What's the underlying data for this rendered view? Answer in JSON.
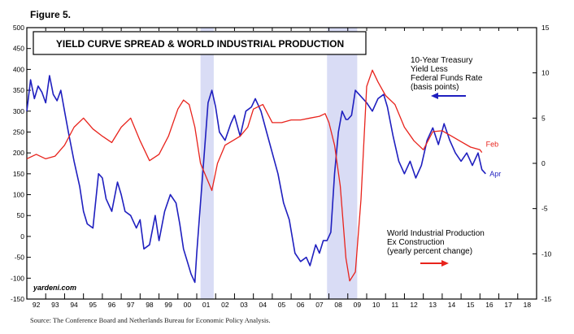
{
  "figure_label": "Figure 5.",
  "source_note": "Source: The Conference Board and Netherlands Bureau for Economic Policy Analysis.",
  "chart_data": {
    "type": "line",
    "title": "YIELD CURVE SPREAD & WORLD INDUSTRIAL PRODUCTION",
    "watermark": "yardeni.com",
    "x_ticks": [
      "92",
      "93",
      "94",
      "95",
      "96",
      "97",
      "98",
      "99",
      "00",
      "01",
      "02",
      "03",
      "04",
      "05",
      "06",
      "07",
      "08",
      "09",
      "10",
      "11",
      "12",
      "13",
      "14",
      "15",
      "16",
      "17",
      "18"
    ],
    "xlim": [
      1992,
      2019
    ],
    "left_axis": {
      "ylim": [
        -150,
        500
      ],
      "ticks": [
        500,
        450,
        400,
        350,
        300,
        250,
        200,
        150,
        100,
        50,
        0,
        -50,
        -100,
        -150
      ]
    },
    "right_axis": {
      "ylim": [
        -15,
        15
      ],
      "ticks": [
        15,
        10,
        5,
        0,
        -5,
        -10,
        -15
      ]
    },
    "recessions": [
      [
        2001.2,
        2001.9
      ],
      [
        2007.9,
        2009.5
      ]
    ],
    "colors": {
      "spread": "#1f1fbf",
      "production": "#e8231c",
      "recession": "#d9dcf5"
    },
    "series": [
      {
        "name": "10-Year Treasury Yield Less Federal Funds Rate (basis points)",
        "axis": "left",
        "end_label": "Apr",
        "x": [
          1992.0,
          1992.2,
          1992.4,
          1992.6,
          1992.8,
          1993.0,
          1993.2,
          1993.4,
          1993.6,
          1993.8,
          1994.0,
          1994.2,
          1994.5,
          1994.8,
          1995.0,
          1995.2,
          1995.5,
          1995.8,
          1996.0,
          1996.2,
          1996.5,
          1996.8,
          1997.0,
          1997.2,
          1997.5,
          1997.8,
          1998.0,
          1998.2,
          1998.5,
          1998.8,
          1999.0,
          1999.3,
          1999.6,
          1999.9,
          2000.1,
          2000.3,
          2000.5,
          2000.7,
          2000.9,
          2001.0,
          2001.2,
          2001.4,
          2001.6,
          2001.8,
          2002.0,
          2002.2,
          2002.5,
          2002.8,
          2003.0,
          2003.3,
          2003.6,
          2003.9,
          2004.1,
          2004.4,
          2004.7,
          2005.0,
          2005.3,
          2005.6,
          2005.9,
          2006.2,
          2006.5,
          2006.8,
          2007.0,
          2007.3,
          2007.5,
          2007.7,
          2007.9,
          2008.1,
          2008.3,
          2008.5,
          2008.7,
          2008.9,
          2009.0,
          2009.2,
          2009.4,
          2009.6,
          2009.8,
          2010.0,
          2010.3,
          2010.6,
          2010.9,
          2011.1,
          2011.4,
          2011.7,
          2012.0,
          2012.3,
          2012.6,
          2012.9,
          2013.2,
          2013.5,
          2013.8,
          2014.1,
          2014.4,
          2014.7,
          2015.0,
          2015.3,
          2015.6,
          2015.9,
          2016.1,
          2016.3
        ],
        "values": [
          300,
          375,
          330,
          360,
          345,
          320,
          385,
          340,
          325,
          350,
          300,
          250,
          180,
          120,
          60,
          30,
          20,
          150,
          140,
          90,
          60,
          130,
          100,
          60,
          50,
          20,
          40,
          -30,
          -20,
          50,
          -10,
          60,
          100,
          80,
          30,
          -30,
          -60,
          -90,
          -110,
          -40,
          80,
          200,
          320,
          350,
          310,
          250,
          230,
          270,
          290,
          240,
          300,
          310,
          330,
          300,
          250,
          200,
          150,
          80,
          40,
          -40,
          -60,
          -50,
          -70,
          -20,
          -40,
          -10,
          -10,
          10,
          150,
          250,
          300,
          280,
          280,
          290,
          350,
          340,
          330,
          320,
          300,
          330,
          340,
          310,
          240,
          180,
          150,
          180,
          140,
          170,
          230,
          260,
          220,
          270,
          230,
          200,
          180,
          200,
          170,
          200,
          160,
          150
        ]
      },
      {
        "name": "World Industrial Production Ex Construction (yearly percent change)",
        "axis": "right",
        "end_label": "Feb",
        "x": [
          1992.0,
          1992.5,
          1993.0,
          1993.5,
          1994.0,
          1994.5,
          1995.0,
          1995.5,
          1996.0,
          1996.5,
          1997.0,
          1997.5,
          1998.0,
          1998.5,
          1999.0,
          1999.5,
          2000.0,
          2000.3,
          2000.6,
          2000.9,
          2001.2,
          2001.5,
          2001.8,
          2002.1,
          2002.5,
          2002.9,
          2003.3,
          2003.7,
          2004.0,
          2004.5,
          2005.0,
          2005.5,
          2006.0,
          2006.5,
          2007.0,
          2007.5,
          2007.8,
          2008.0,
          2008.3,
          2008.6,
          2008.9,
          2009.1,
          2009.4,
          2009.7,
          2010.0,
          2010.3,
          2010.6,
          2011.0,
          2011.5,
          2012.0,
          2012.5,
          2013.0,
          2013.5,
          2014.0,
          2014.5,
          2015.0,
          2015.5,
          2016.0,
          2016.1
        ],
        "values": [
          0.5,
          1.0,
          0.5,
          0.8,
          2.0,
          4.0,
          5.0,
          3.8,
          3.0,
          2.3,
          4.0,
          5.0,
          2.5,
          0.3,
          1.0,
          3.0,
          6.0,
          7.0,
          6.5,
          4.0,
          0.0,
          -1.5,
          -3.0,
          0.0,
          2.0,
          2.5,
          3.0,
          4.0,
          6.0,
          6.5,
          4.5,
          4.5,
          4.8,
          4.8,
          5.0,
          5.2,
          5.5,
          4.5,
          2.0,
          -2.5,
          -10.5,
          -13.0,
          -12.0,
          -4.0,
          8.5,
          10.3,
          9.0,
          7.5,
          6.5,
          4.0,
          2.5,
          1.5,
          3.5,
          3.6,
          3.0,
          2.4,
          1.8,
          1.5,
          1.2
        ]
      }
    ],
    "legend": {
      "spread_lines": [
        "10-Year Treasury",
        "Yield Less",
        "Federal Funds Rate",
        "(basis points)"
      ],
      "production_lines": [
        "World Industrial Production",
        "Ex Construction",
        "(yearly percent change)"
      ]
    }
  }
}
